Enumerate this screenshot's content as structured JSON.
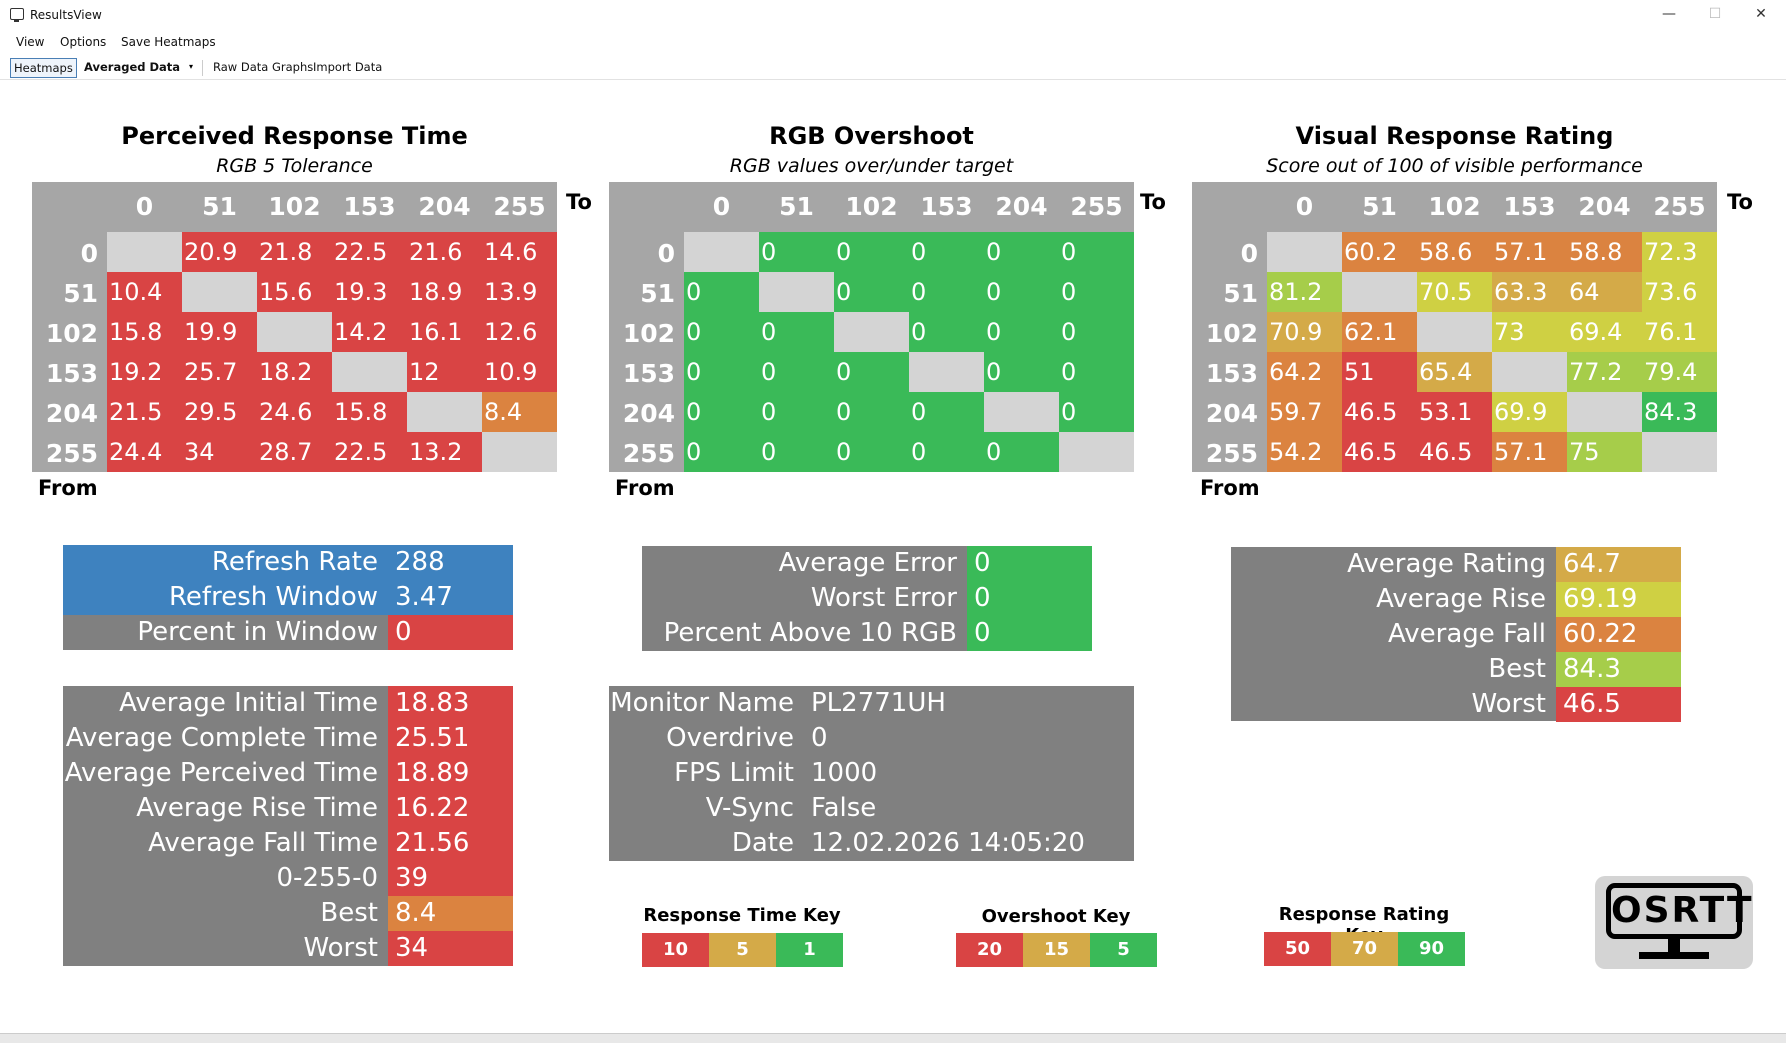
{
  "window": {
    "title": "ResultsView",
    "minimize_label": "—",
    "maximize_label": "☐",
    "close_label": "✕"
  },
  "menu": [
    "View",
    "Options",
    "Save Heatmaps"
  ],
  "toolbar": {
    "heatmaps": "Heatmaps",
    "averaged": "Averaged Data",
    "dropdown_icon": "▾",
    "raw": "Raw Data Graphs",
    "import": "Import Data"
  },
  "labels": {
    "to": "To",
    "from": "From"
  },
  "colors": {
    "red": "#d94444",
    "orange": "#db8340",
    "amber": "#d4aa48",
    "yellow": "#cfd043",
    "lime": "#a6cd4a",
    "green": "#3aba58",
    "grey_cell": "#d4d4d4",
    "blue": "#3e82bf",
    "panel": "#808080",
    "header": "#a6a6a6"
  },
  "heatmaps": [
    {
      "title": "Perceived Response Time",
      "subtitle": "RGB 5 Tolerance",
      "headers": [
        "0",
        "51",
        "102",
        "153",
        "204",
        "255"
      ],
      "rows": [
        [
          null,
          {
            "v": "20.9",
            "c": "red"
          },
          {
            "v": "21.8",
            "c": "red"
          },
          {
            "v": "22.5",
            "c": "red"
          },
          {
            "v": "21.6",
            "c": "red"
          },
          {
            "v": "14.6",
            "c": "red"
          }
        ],
        [
          {
            "v": "10.4",
            "c": "red"
          },
          null,
          {
            "v": "15.6",
            "c": "red"
          },
          {
            "v": "19.3",
            "c": "red"
          },
          {
            "v": "18.9",
            "c": "red"
          },
          {
            "v": "13.9",
            "c": "red"
          }
        ],
        [
          {
            "v": "15.8",
            "c": "red"
          },
          {
            "v": "19.9",
            "c": "red"
          },
          null,
          {
            "v": "14.2",
            "c": "red"
          },
          {
            "v": "16.1",
            "c": "red"
          },
          {
            "v": "12.6",
            "c": "red"
          }
        ],
        [
          {
            "v": "19.2",
            "c": "red"
          },
          {
            "v": "25.7",
            "c": "red"
          },
          {
            "v": "18.2",
            "c": "red"
          },
          null,
          {
            "v": "12",
            "c": "red"
          },
          {
            "v": "10.9",
            "c": "red"
          }
        ],
        [
          {
            "v": "21.5",
            "c": "red"
          },
          {
            "v": "29.5",
            "c": "red"
          },
          {
            "v": "24.6",
            "c": "red"
          },
          {
            "v": "15.8",
            "c": "red"
          },
          null,
          {
            "v": "8.4",
            "c": "orange"
          }
        ],
        [
          {
            "v": "24.4",
            "c": "red"
          },
          {
            "v": "34",
            "c": "red"
          },
          {
            "v": "28.7",
            "c": "red"
          },
          {
            "v": "22.5",
            "c": "red"
          },
          {
            "v": "13.2",
            "c": "red"
          },
          null
        ]
      ]
    },
    {
      "title": "RGB Overshoot",
      "subtitle": "RGB values over/under target",
      "headers": [
        "0",
        "51",
        "102",
        "153",
        "204",
        "255"
      ],
      "rows": [
        [
          null,
          {
            "v": "0",
            "c": "green"
          },
          {
            "v": "0",
            "c": "green"
          },
          {
            "v": "0",
            "c": "green"
          },
          {
            "v": "0",
            "c": "green"
          },
          {
            "v": "0",
            "c": "green"
          }
        ],
        [
          {
            "v": "0",
            "c": "green"
          },
          null,
          {
            "v": "0",
            "c": "green"
          },
          {
            "v": "0",
            "c": "green"
          },
          {
            "v": "0",
            "c": "green"
          },
          {
            "v": "0",
            "c": "green"
          }
        ],
        [
          {
            "v": "0",
            "c": "green"
          },
          {
            "v": "0",
            "c": "green"
          },
          null,
          {
            "v": "0",
            "c": "green"
          },
          {
            "v": "0",
            "c": "green"
          },
          {
            "v": "0",
            "c": "green"
          }
        ],
        [
          {
            "v": "0",
            "c": "green"
          },
          {
            "v": "0",
            "c": "green"
          },
          {
            "v": "0",
            "c": "green"
          },
          null,
          {
            "v": "0",
            "c": "green"
          },
          {
            "v": "0",
            "c": "green"
          }
        ],
        [
          {
            "v": "0",
            "c": "green"
          },
          {
            "v": "0",
            "c": "green"
          },
          {
            "v": "0",
            "c": "green"
          },
          {
            "v": "0",
            "c": "green"
          },
          null,
          {
            "v": "0",
            "c": "green"
          }
        ],
        [
          {
            "v": "0",
            "c": "green"
          },
          {
            "v": "0",
            "c": "green"
          },
          {
            "v": "0",
            "c": "green"
          },
          {
            "v": "0",
            "c": "green"
          },
          {
            "v": "0",
            "c": "green"
          },
          null
        ]
      ]
    },
    {
      "title": "Visual Response Rating",
      "subtitle": "Score out of 100 of visible performance",
      "headers": [
        "0",
        "51",
        "102",
        "153",
        "204",
        "255"
      ],
      "rows": [
        [
          null,
          {
            "v": "60.2",
            "c": "orange"
          },
          {
            "v": "58.6",
            "c": "orange"
          },
          {
            "v": "57.1",
            "c": "orange"
          },
          {
            "v": "58.8",
            "c": "orange"
          },
          {
            "v": "72.3",
            "c": "yellow"
          }
        ],
        [
          {
            "v": "81.2",
            "c": "lime"
          },
          null,
          {
            "v": "70.5",
            "c": "yellow"
          },
          {
            "v": "63.3",
            "c": "amber"
          },
          {
            "v": "64",
            "c": "amber"
          },
          {
            "v": "73.6",
            "c": "yellow"
          }
        ],
        [
          {
            "v": "70.9",
            "c": "amber"
          },
          {
            "v": "62.1",
            "c": "orange"
          },
          null,
          {
            "v": "73",
            "c": "yellow"
          },
          {
            "v": "69.4",
            "c": "yellow"
          },
          {
            "v": "76.1",
            "c": "yellow"
          }
        ],
        [
          {
            "v": "64.2",
            "c": "orange"
          },
          {
            "v": "51",
            "c": "red"
          },
          {
            "v": "65.4",
            "c": "amber"
          },
          null,
          {
            "v": "77.2",
            "c": "lime"
          },
          {
            "v": "79.4",
            "c": "lime"
          }
        ],
        [
          {
            "v": "59.7",
            "c": "orange"
          },
          {
            "v": "46.5",
            "c": "red"
          },
          {
            "v": "53.1",
            "c": "red"
          },
          {
            "v": "69.9",
            "c": "yellow"
          },
          null,
          {
            "v": "84.3",
            "c": "green"
          }
        ],
        [
          {
            "v": "54.2",
            "c": "orange"
          },
          {
            "v": "46.5",
            "c": "red"
          },
          {
            "v": "46.5",
            "c": "red"
          },
          {
            "v": "57.1",
            "c": "orange"
          },
          {
            "v": "75",
            "c": "lime"
          },
          null
        ]
      ]
    }
  ],
  "refresh_panel": [
    {
      "label": "Refresh Rate",
      "value": "288",
      "lc": "blue",
      "vc": "blue"
    },
    {
      "label": "Refresh Window",
      "value": "3.47",
      "lc": "blue",
      "vc": "blue"
    },
    {
      "label": "Percent in Window",
      "value": "0",
      "lc": "panel",
      "vc": "red"
    }
  ],
  "timing_panel": [
    {
      "label": "Average Initial Time",
      "value": "18.83",
      "vc": "red"
    },
    {
      "label": "Average Complete Time",
      "value": "25.51",
      "vc": "red"
    },
    {
      "label": "Average Perceived Time",
      "value": "18.89",
      "vc": "red"
    },
    {
      "label": "Average Rise Time",
      "value": "16.22",
      "vc": "red"
    },
    {
      "label": "Average Fall Time",
      "value": "21.56",
      "vc": "red"
    },
    {
      "label": "0-255-0",
      "value": "39",
      "vc": "red"
    },
    {
      "label": "Best",
      "value": "8.4",
      "vc": "orange"
    },
    {
      "label": "Worst",
      "value": "34",
      "vc": "red"
    }
  ],
  "error_panel": [
    {
      "label": "Average Error",
      "value": "0",
      "vc": "green"
    },
    {
      "label": "Worst Error",
      "value": "0",
      "vc": "green"
    },
    {
      "label": "Percent Above 10 RGB",
      "value": "0",
      "vc": "green"
    }
  ],
  "monitor_panel": [
    {
      "label": "Monitor Name",
      "value": "PL2771UH"
    },
    {
      "label": "Overdrive",
      "value": "0"
    },
    {
      "label": "FPS Limit",
      "value": "1000"
    },
    {
      "label": "V-Sync",
      "value": "False"
    },
    {
      "label": "Date",
      "value": "12.02.2026 14:05:20"
    }
  ],
  "rating_panel": [
    {
      "label": "Average Rating",
      "value": "64.7",
      "vc": "amber"
    },
    {
      "label": "Average Rise",
      "value": "69.19",
      "vc": "yellow"
    },
    {
      "label": "Average Fall",
      "value": "60.22",
      "vc": "orange"
    },
    {
      "label": "Best",
      "value": "84.3",
      "vc": "lime"
    },
    {
      "label": "Worst",
      "value": "46.5",
      "vc": "red"
    }
  ],
  "keys": [
    {
      "title": "Response Time Key",
      "cells": [
        {
          "v": "10",
          "c": "red"
        },
        {
          "v": "5",
          "c": "amber"
        },
        {
          "v": "1",
          "c": "green"
        }
      ]
    },
    {
      "title": "Overshoot Key",
      "cells": [
        {
          "v": "20",
          "c": "red"
        },
        {
          "v": "15",
          "c": "amber"
        },
        {
          "v": "5",
          "c": "green"
        }
      ]
    },
    {
      "title": "Response Rating Key",
      "cells": [
        {
          "v": "50",
          "c": "red"
        },
        {
          "v": "70",
          "c": "amber"
        },
        {
          "v": "90",
          "c": "green"
        }
      ]
    }
  ],
  "logo": {
    "text": "OSRTT",
    "icon": "monitor-logo-icon"
  }
}
